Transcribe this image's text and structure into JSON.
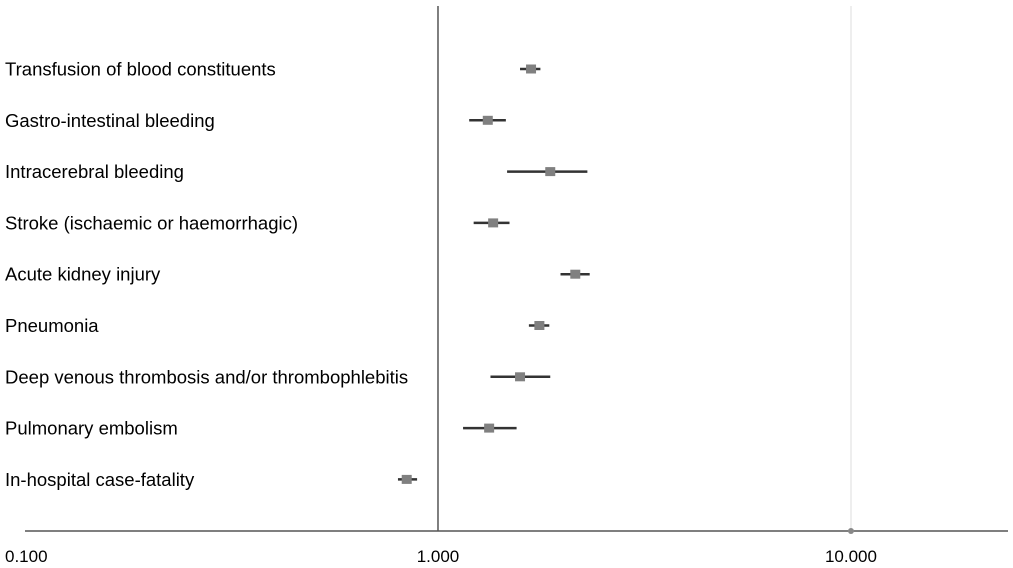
{
  "chart_data": {
    "type": "scatter",
    "subtype": "forest-plot",
    "title": "",
    "xlabel": "",
    "ylabel": "",
    "x_scale": "log",
    "xlim": [
      0.1,
      24
    ],
    "reference_line_x": 1.0,
    "grid": "x-major",
    "legend": "none",
    "tick_values": [
      0.1,
      1.0,
      10.0
    ],
    "tick_labels": [
      "0.100",
      "1.000",
      "10.000"
    ],
    "categories": [
      "Transfusion of blood constituents",
      "Gastro-intestinal bleeding",
      "Intracerebral bleeding",
      "Stroke (ischaemic or haemorrhagic)",
      "Acute kidney injury",
      "Pneumonia",
      "Deep venous thrombosis and/or thrombophlebitis",
      "Pulmonary embolism",
      "In-hospital case-fatality"
    ],
    "estimates": [
      1.68,
      1.32,
      1.87,
      1.36,
      2.15,
      1.76,
      1.58,
      1.33,
      0.84
    ],
    "ci_lower": [
      1.58,
      1.19,
      1.47,
      1.22,
      1.98,
      1.66,
      1.34,
      1.15,
      0.8
    ],
    "ci_upper": [
      1.77,
      1.46,
      2.3,
      1.49,
      2.33,
      1.86,
      1.87,
      1.55,
      0.89
    ],
    "colors": {
      "marker": "#808080",
      "ci_line": "#333333",
      "axis": "#555555",
      "reference_line": "#555555",
      "grid": "#dddddd"
    }
  }
}
